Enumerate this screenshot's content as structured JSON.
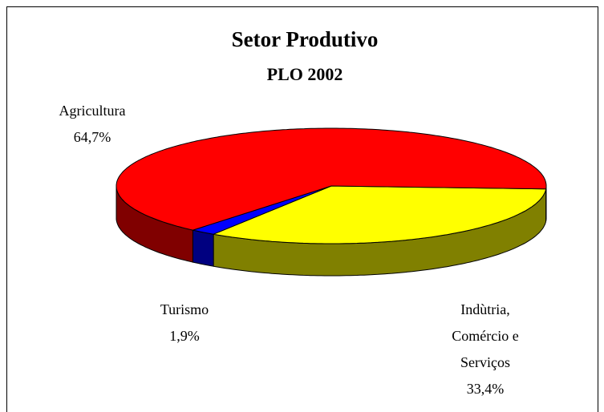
{
  "chart_data": {
    "type": "pie3d",
    "title": "Setor Produtivo",
    "subtitle": "PLO 2002",
    "categories": [
      "Indùtria, Comércio e Serviços",
      "Turismo",
      "Agricultura"
    ],
    "values": [
      33.4,
      1.9,
      64.7
    ],
    "value_labels": [
      "33,4%",
      "1,9%",
      "64,7%"
    ],
    "colors": [
      "#ffff00",
      "#0000ff",
      "#ff0000"
    ],
    "side_colors": [
      "#808000",
      "#000080",
      "#800000"
    ]
  }
}
